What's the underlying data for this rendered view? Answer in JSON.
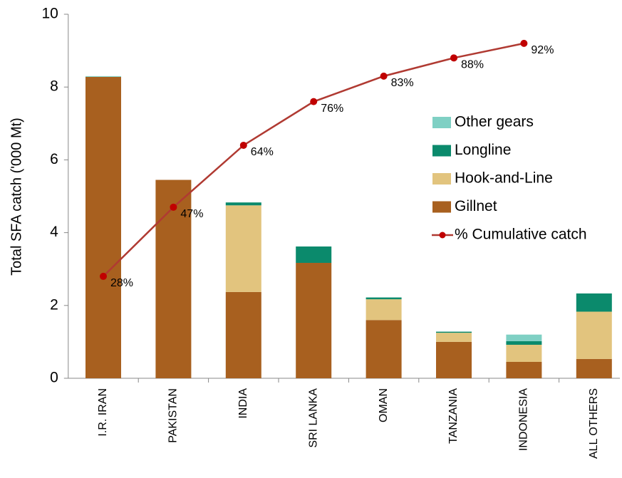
{
  "chart_data": {
    "type": "bar",
    "stacked": true,
    "y_label": "Total SFA catch ('000 Mt)",
    "categories": [
      "I.R. IRAN",
      "PAKISTAN",
      "INDIA",
      "SRI LANKA",
      "OMAN",
      "TANZANIA",
      "INDONESIA",
      "ALL OTHERS"
    ],
    "series": [
      {
        "name": "Gillnet",
        "color": "#a8601f",
        "values": [
          8.28,
          5.45,
          2.37,
          3.17,
          1.6,
          1.0,
          0.45,
          0.53
        ]
      },
      {
        "name": "Hook-and-Line",
        "color": "#e2c47e",
        "values": [
          0,
          0,
          2.38,
          0,
          0.57,
          0.25,
          0.47,
          1.3
        ]
      },
      {
        "name": "Longline",
        "color": "#0b8a6c",
        "values": [
          0,
          0,
          0.08,
          0.45,
          0.05,
          0.03,
          0.1,
          0.5
        ]
      },
      {
        "name": "Other gears",
        "color": "#7fd0c4",
        "values": [
          0.02,
          0,
          0,
          0,
          0,
          0,
          0.18,
          0
        ]
      },
      {
        "name": "% Cumulative catch",
        "type": "line",
        "axis": "y2",
        "color": "#b03a32",
        "values": [
          28,
          47,
          64,
          76,
          83,
          88,
          92,
          null
        ],
        "value_labels": [
          "28%",
          "47%",
          "64%",
          "76%",
          "83%",
          "88%",
          "92%",
          null
        ]
      }
    ],
    "ylim": [
      0,
      10
    ],
    "yticks": [
      0,
      2,
      4,
      6,
      8,
      10
    ],
    "y2lim": [
      0,
      100
    ],
    "legend": "right"
  }
}
